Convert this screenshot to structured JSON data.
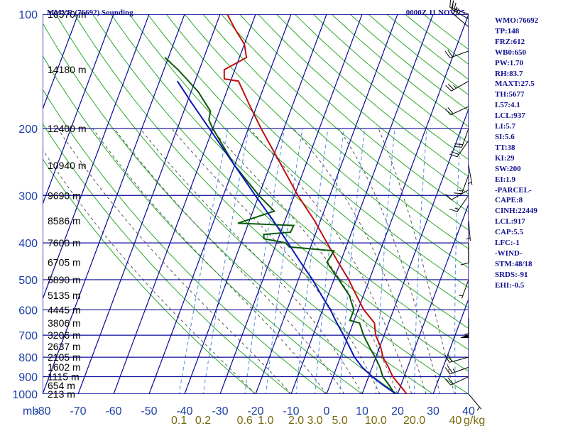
{
  "title_left": "MMVR (76692) Sounding",
  "title_right": "0000Z 11 NOV 25",
  "indices": [
    "WMO:76692",
    "TP:148",
    "FRZ:612",
    "WB0:650",
    "PW:1.70",
    "RH:83.7",
    "MAXT:27.5",
    "TH:5677",
    "L57:4.1",
    "LCL:937",
    "LI:5.7",
    "SI:5.6",
    "TT:38",
    "KI:29",
    "SW:200",
    "EI:1.9",
    "-PARCEL-",
    "CAPE:8",
    "CINH:22449",
    "LCL:917",
    "CAP:5.5",
    "LFC:-1",
    "-WIND-",
    "STM:48/18",
    "SRDS:-91",
    "EHI:-0.5"
  ],
  "colors": {
    "frame": "#0a0a9a",
    "dry_adiabat": "#2aa82a",
    "moist_adiabat": "#555555",
    "mixing_ratio": "#4a8ce0",
    "temperature": "#c01010",
    "dewpoint": "#0a5a0a",
    "parcel": "#0a18b8",
    "wind_barb": "#000000"
  },
  "chart_data": {
    "type": "line",
    "diagram": "skew-T log-P",
    "xlabel": "",
    "ylabel": "mb",
    "ylim": [
      1000,
      100
    ],
    "xlim": [
      -80,
      40
    ],
    "pressure_ticks": [
      100,
      200,
      300,
      400,
      500,
      600,
      700,
      800,
      900,
      1000
    ],
    "temperature_ticks": [
      "-80",
      "-70",
      "-60",
      "-50",
      "-40",
      "-30",
      "-20",
      "-10",
      "0",
      "10",
      "20",
      "30",
      "40"
    ],
    "mixing_ratio_unit": "g/kg",
    "mixing_ratio_ticks": [
      "0.1",
      "0.2",
      "0.6",
      "1.0",
      "2.0",
      "3.0",
      "5.0",
      "10.0",
      "20.0",
      "40"
    ],
    "height_labels": [
      {
        "p": 100,
        "label": "16570 m"
      },
      {
        "p": 140,
        "label": "14180 m"
      },
      {
        "p": 200,
        "label": "12400 m"
      },
      {
        "p": 250,
        "label": "10940 m"
      },
      {
        "p": 300,
        "label": "9690 m"
      },
      {
        "p": 350,
        "label": "8586 m"
      },
      {
        "p": 400,
        "label": "7600 m"
      },
      {
        "p": 450,
        "label": "6705 m"
      },
      {
        "p": 500,
        "label": "5890 m"
      },
      {
        "p": 550,
        "label": "5135 m"
      },
      {
        "p": 600,
        "label": "4445 m"
      },
      {
        "p": 650,
        "label": "3806 m"
      },
      {
        "p": 700,
        "label": "3206 m"
      },
      {
        "p": 750,
        "label": "2637 m"
      },
      {
        "p": 800,
        "label": "2105 m"
      },
      {
        "p": 850,
        "label": "1602 m"
      },
      {
        "p": 900,
        "label": "1115 m"
      },
      {
        "p": 950,
        "label": "654 m"
      },
      {
        "p": 1000,
        "label": "213 m"
      }
    ],
    "dry_adiabat_thetas": [
      -20,
      -10,
      0,
      10,
      20,
      30,
      40,
      50,
      60,
      70,
      80,
      90,
      100,
      110,
      120,
      130,
      140,
      150,
      160,
      170,
      180,
      190,
      200,
      210,
      220,
      230
    ],
    "moist_adiabat_bases": [
      -20,
      -10,
      0,
      5,
      10,
      15,
      20,
      24,
      28,
      32,
      36
    ],
    "mixing_ratio_lines": [
      0.1,
      0.2,
      0.6,
      1.0,
      2.0,
      3.0,
      5.0,
      10.0,
      20.0,
      40.0
    ],
    "series": [
      {
        "key": "temperature",
        "points": [
          [
            1013,
            23.0
          ],
          [
            1000,
            22.6
          ],
          [
            950,
            19.8
          ],
          [
            900,
            16.8
          ],
          [
            850,
            14.6
          ],
          [
            800,
            12.0
          ],
          [
            750,
            10.2
          ],
          [
            700,
            7.6
          ],
          [
            650,
            6.0
          ],
          [
            600,
            1.6
          ],
          [
            550,
            -2.0
          ],
          [
            500,
            -5.8
          ],
          [
            450,
            -10.6
          ],
          [
            400,
            -15.8
          ],
          [
            350,
            -21.6
          ],
          [
            300,
            -29.0
          ],
          [
            250,
            -36.8
          ],
          [
            200,
            -46.4
          ],
          [
            175,
            -51.8
          ],
          [
            150,
            -57.8
          ],
          [
            148,
            -62.0
          ],
          [
            140,
            -63.0
          ],
          [
            130,
            -58.0
          ],
          [
            120,
            -60.0
          ],
          [
            110,
            -64.0
          ],
          [
            100,
            -68.0
          ]
        ]
      },
      {
        "key": "dewpoint",
        "points": [
          [
            1013,
            21.0
          ],
          [
            1000,
            19.2
          ],
          [
            950,
            16.8
          ],
          [
            900,
            14.0
          ],
          [
            850,
            12.2
          ],
          [
            800,
            9.8
          ],
          [
            750,
            7.0
          ],
          [
            700,
            4.2
          ],
          [
            650,
            1.8
          ],
          [
            640,
            -1.2
          ],
          [
            600,
            -1.2
          ],
          [
            550,
            -4.0
          ],
          [
            500,
            -8.6
          ],
          [
            450,
            -13.8
          ],
          [
            420,
            -13.0
          ],
          [
            410,
            -26.0
          ],
          [
            400,
            -27.5
          ],
          [
            390,
            -34.0
          ],
          [
            380,
            -34.5
          ],
          [
            375,
            -27.2
          ],
          [
            360,
            -27.0
          ],
          [
            355,
            -43.0
          ],
          [
            330,
            -34.0
          ],
          [
            300,
            -40.0
          ],
          [
            250,
            -50.0
          ],
          [
            200,
            -60.0
          ],
          [
            190,
            -62.0
          ],
          [
            180,
            -62.5
          ],
          [
            160,
            -68.0
          ],
          [
            140,
            -76.0
          ],
          [
            130,
            -81.0
          ]
        ]
      },
      {
        "key": "parcel",
        "points": [
          [
            1013,
            21.6
          ],
          [
            1000,
            19.6
          ],
          [
            950,
            15.2
          ],
          [
            900,
            11.0
          ],
          [
            850,
            7.2
          ],
          [
            800,
            4.0
          ],
          [
            750,
            1.4
          ],
          [
            700,
            -1.4
          ],
          [
            650,
            -4.6
          ],
          [
            600,
            -7.8
          ],
          [
            550,
            -11.8
          ],
          [
            500,
            -16.0
          ],
          [
            450,
            -21.2
          ],
          [
            400,
            -26.8
          ],
          [
            350,
            -33.2
          ],
          [
            300,
            -41.0
          ],
          [
            250,
            -50.0
          ],
          [
            200,
            -61.0
          ],
          [
            170,
            -69.0
          ],
          [
            150,
            -75.0
          ]
        ]
      }
    ],
    "wind_barbs": [
      {
        "p": 100,
        "dir": 290,
        "spd": 20
      },
      {
        "p": 103,
        "dir": 300,
        "spd": 25
      },
      {
        "p": 108,
        "dir": 310,
        "spd": 20
      },
      {
        "p": 125,
        "dir": 250,
        "spd": 20
      },
      {
        "p": 150,
        "dir": 240,
        "spd": 25
      },
      {
        "p": 175,
        "dir": 245,
        "spd": 20
      },
      {
        "p": 200,
        "dir": 200,
        "spd": 20
      },
      {
        "p": 215,
        "dir": 215,
        "spd": 20
      },
      {
        "p": 250,
        "dir": 170,
        "spd": 5
      },
      {
        "p": 265,
        "dir": 200,
        "spd": 15
      },
      {
        "p": 290,
        "dir": 240,
        "spd": 10
      },
      {
        "p": 300,
        "dir": 215,
        "spd": 15
      },
      {
        "p": 350,
        "dir": 175,
        "spd": 5
      },
      {
        "p": 400,
        "dir": 180,
        "spd": 10
      },
      {
        "p": 500,
        "dir": 200,
        "spd": 5
      },
      {
        "p": 630,
        "dir": 180,
        "spd": 55
      },
      {
        "p": 800,
        "dir": 255,
        "spd": 20
      },
      {
        "p": 850,
        "dir": 250,
        "spd": 25
      },
      {
        "p": 900,
        "dir": 245,
        "spd": 20
      },
      {
        "p": 1000,
        "dir": 140,
        "spd": 5
      }
    ]
  }
}
